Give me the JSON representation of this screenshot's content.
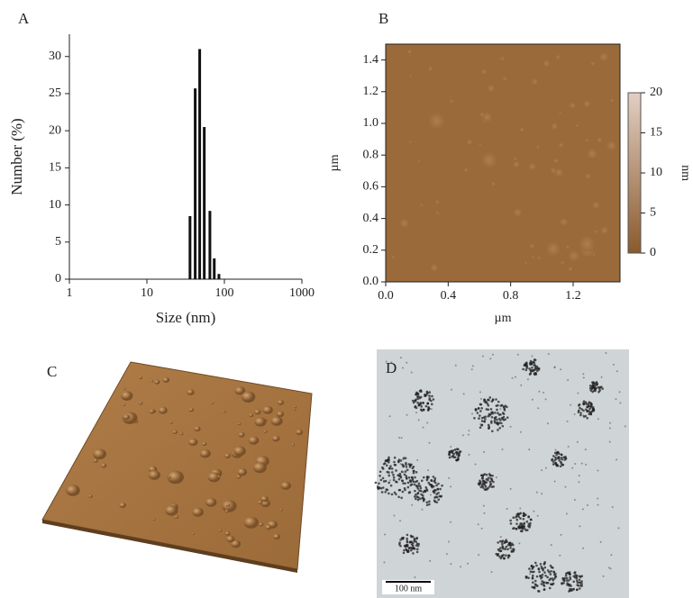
{
  "chart_data": [
    {
      "type": "bar",
      "label": "A",
      "xlabel": "Size (nm)",
      "ylabel": "Number (%)",
      "xscale": "log",
      "color": "#111111",
      "x": [
        36,
        42,
        48,
        55,
        65,
        74,
        85
      ],
      "values": [
        8.5,
        25.7,
        31,
        20.5,
        9.2,
        2.8,
        0.7
      ],
      "xlim": [
        1,
        1000
      ],
      "xticks": [
        1,
        10,
        100,
        1000
      ],
      "ylim": [
        0,
        33
      ],
      "yticks": [
        0,
        5,
        10,
        15,
        20,
        25,
        30
      ]
    },
    {
      "type": "image",
      "label": "B",
      "xlabel": "µm",
      "ylabel": "µm",
      "colorbar_label": "nm",
      "xlim": [
        0,
        1.5
      ],
      "xticks": [
        {
          "value": 0,
          "label": "0.0"
        },
        {
          "value": 0.4,
          "label": "0.4"
        },
        {
          "value": 0.8,
          "label": "0.8"
        },
        {
          "value": 1.2,
          "label": "1.2"
        }
      ],
      "ylim": [
        0,
        1.5
      ],
      "yticks": [
        {
          "value": 0,
          "label": "0.0"
        },
        {
          "value": 0.2,
          "label": "0.2"
        },
        {
          "value": 0.4,
          "label": "0.4"
        },
        {
          "value": 0.6,
          "label": "0.6"
        },
        {
          "value": 0.8,
          "label": "0.8"
        },
        {
          "value": 1,
          "label": "1.0"
        },
        {
          "value": 1.2,
          "label": "1.2"
        },
        {
          "value": 1.4,
          "label": "1.4"
        }
      ],
      "clim": [
        0,
        20
      ],
      "cticks": [
        0,
        5,
        10,
        15,
        20
      ]
    }
  ],
  "images": [
    {
      "label": "C"
    },
    {
      "label": "D",
      "scale_bar": "100 nm"
    }
  ]
}
